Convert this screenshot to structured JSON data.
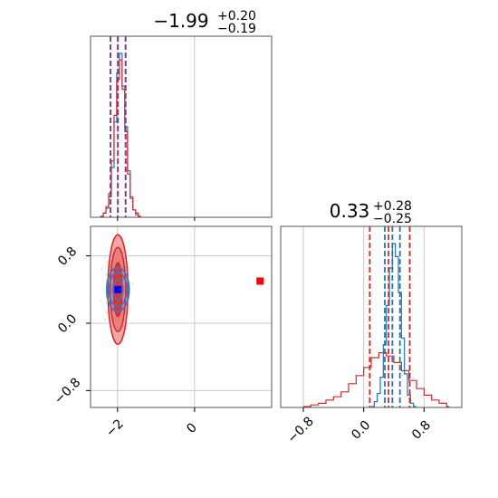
{
  "colors": {
    "red": "#d62728",
    "blue": "#1f77b4",
    "red_fill_outer": "#f2a6a6",
    "red_fill_mid": "#e98080",
    "red_fill_inner": "#dc3535",
    "grid": "#c8c8c8",
    "truth_marker": "#ff0000",
    "point_marker": "#0000ff",
    "scatter": "#f6b8c6"
  },
  "chart_data": [
    {
      "type": "histogram",
      "panel": "marginal-1",
      "title": {
        "value": "−1.99",
        "sup": "+0.20",
        "sub": "−0.19"
      },
      "xlim": [
        -2.7,
        2.0
      ],
      "xticks": [
        -2,
        0
      ],
      "grid": true,
      "red_quantiles": [
        -2.18,
        -1.99,
        -1.79
      ],
      "blue_quantiles": [
        -2.18,
        -1.99,
        -1.79
      ],
      "blue_bins": [
        [
          -2.45,
          0.0
        ],
        [
          -2.37,
          0.02
        ],
        [
          -2.3,
          0.05
        ],
        [
          -2.23,
          0.12
        ],
        [
          -2.16,
          0.3
        ],
        [
          -2.09,
          0.58
        ],
        [
          -2.02,
          0.88
        ],
        [
          -1.95,
          1.0
        ],
        [
          -1.88,
          0.8
        ],
        [
          -1.81,
          0.55
        ],
        [
          -1.74,
          0.28
        ],
        [
          -1.67,
          0.12
        ],
        [
          -1.6,
          0.04
        ],
        [
          -1.53,
          0.01
        ],
        [
          -1.46,
          0.0
        ]
      ],
      "red_bins": [
        [
          -2.45,
          0.0
        ],
        [
          -2.37,
          0.02
        ],
        [
          -2.3,
          0.06
        ],
        [
          -2.23,
          0.14
        ],
        [
          -2.16,
          0.34
        ],
        [
          -2.09,
          0.62
        ],
        [
          -2.02,
          0.84
        ],
        [
          -1.95,
          0.96
        ],
        [
          -1.88,
          0.78
        ],
        [
          -1.81,
          0.52
        ],
        [
          -1.74,
          0.26
        ],
        [
          -1.67,
          0.11
        ],
        [
          -1.6,
          0.04
        ],
        [
          -1.53,
          0.02
        ],
        [
          -1.46,
          0.0
        ]
      ]
    },
    {
      "type": "histogram",
      "panel": "marginal-2",
      "title": {
        "value": "0.33",
        "sup": "+0.28",
        "sub": "−0.25"
      },
      "xlim": [
        -1.1,
        1.3
      ],
      "xticks": [
        -0.8,
        0.0,
        0.8
      ],
      "xtick_labels": [
        "−0.8",
        "0.0",
        "0.8"
      ],
      "grid": true,
      "red_quantiles": [
        0.08,
        0.33,
        0.61
      ],
      "blue_quantiles": [
        0.28,
        0.38,
        0.48
      ],
      "blue_bins": [
        [
          0.1,
          0.0
        ],
        [
          0.14,
          0.03
        ],
        [
          0.18,
          0.08
        ],
        [
          0.22,
          0.18
        ],
        [
          0.26,
          0.38
        ],
        [
          0.3,
          0.62
        ],
        [
          0.34,
          0.85
        ],
        [
          0.38,
          1.0
        ],
        [
          0.42,
          0.92
        ],
        [
          0.46,
          0.7
        ],
        [
          0.5,
          0.42
        ],
        [
          0.54,
          0.2
        ],
        [
          0.58,
          0.07
        ],
        [
          0.62,
          0.02
        ],
        [
          0.66,
          0.0
        ]
      ],
      "red_bins": [
        [
          -0.8,
          0.0
        ],
        [
          -0.7,
          0.01
        ],
        [
          -0.6,
          0.02
        ],
        [
          -0.5,
          0.04
        ],
        [
          -0.4,
          0.06
        ],
        [
          -0.3,
          0.09
        ],
        [
          -0.2,
          0.14
        ],
        [
          -0.1,
          0.19
        ],
        [
          0.0,
          0.24
        ],
        [
          0.1,
          0.3
        ],
        [
          0.2,
          0.33
        ],
        [
          0.3,
          0.31
        ],
        [
          0.4,
          0.27
        ],
        [
          0.5,
          0.22
        ],
        [
          0.6,
          0.16
        ],
        [
          0.7,
          0.11
        ],
        [
          0.8,
          0.07
        ],
        [
          0.9,
          0.04
        ],
        [
          1.0,
          0.02
        ],
        [
          1.1,
          0.0
        ]
      ]
    },
    {
      "type": "scatter",
      "panel": "joint",
      "xlim": [
        -2.7,
        2.0
      ],
      "ylim": [
        -1.0,
        1.15
      ],
      "xticks": [
        -2,
        0
      ],
      "yticks": [
        -0.8,
        0.0,
        0.8
      ],
      "ytick_labels": [
        "−0.8",
        "0.0",
        "0.8"
      ],
      "grid": true,
      "center": [
        -1.99,
        0.4
      ],
      "red_contours": [
        {
          "level": "outer",
          "rx": 0.52,
          "ry": 0.65
        },
        {
          "level": "mid",
          "rx": 0.4,
          "ry": 0.5
        },
        {
          "level": "inner",
          "rx": 0.22,
          "ry": 0.32
        }
      ],
      "blue_contours": [
        {
          "rx": 0.58,
          "ry": 0.26
        },
        {
          "rx": 0.46,
          "ry": 0.2
        },
        {
          "rx": 0.26,
          "ry": 0.12
        }
      ],
      "point_blue": [
        -1.99,
        0.4
      ],
      "point_red": [
        1.7,
        0.5
      ]
    }
  ]
}
